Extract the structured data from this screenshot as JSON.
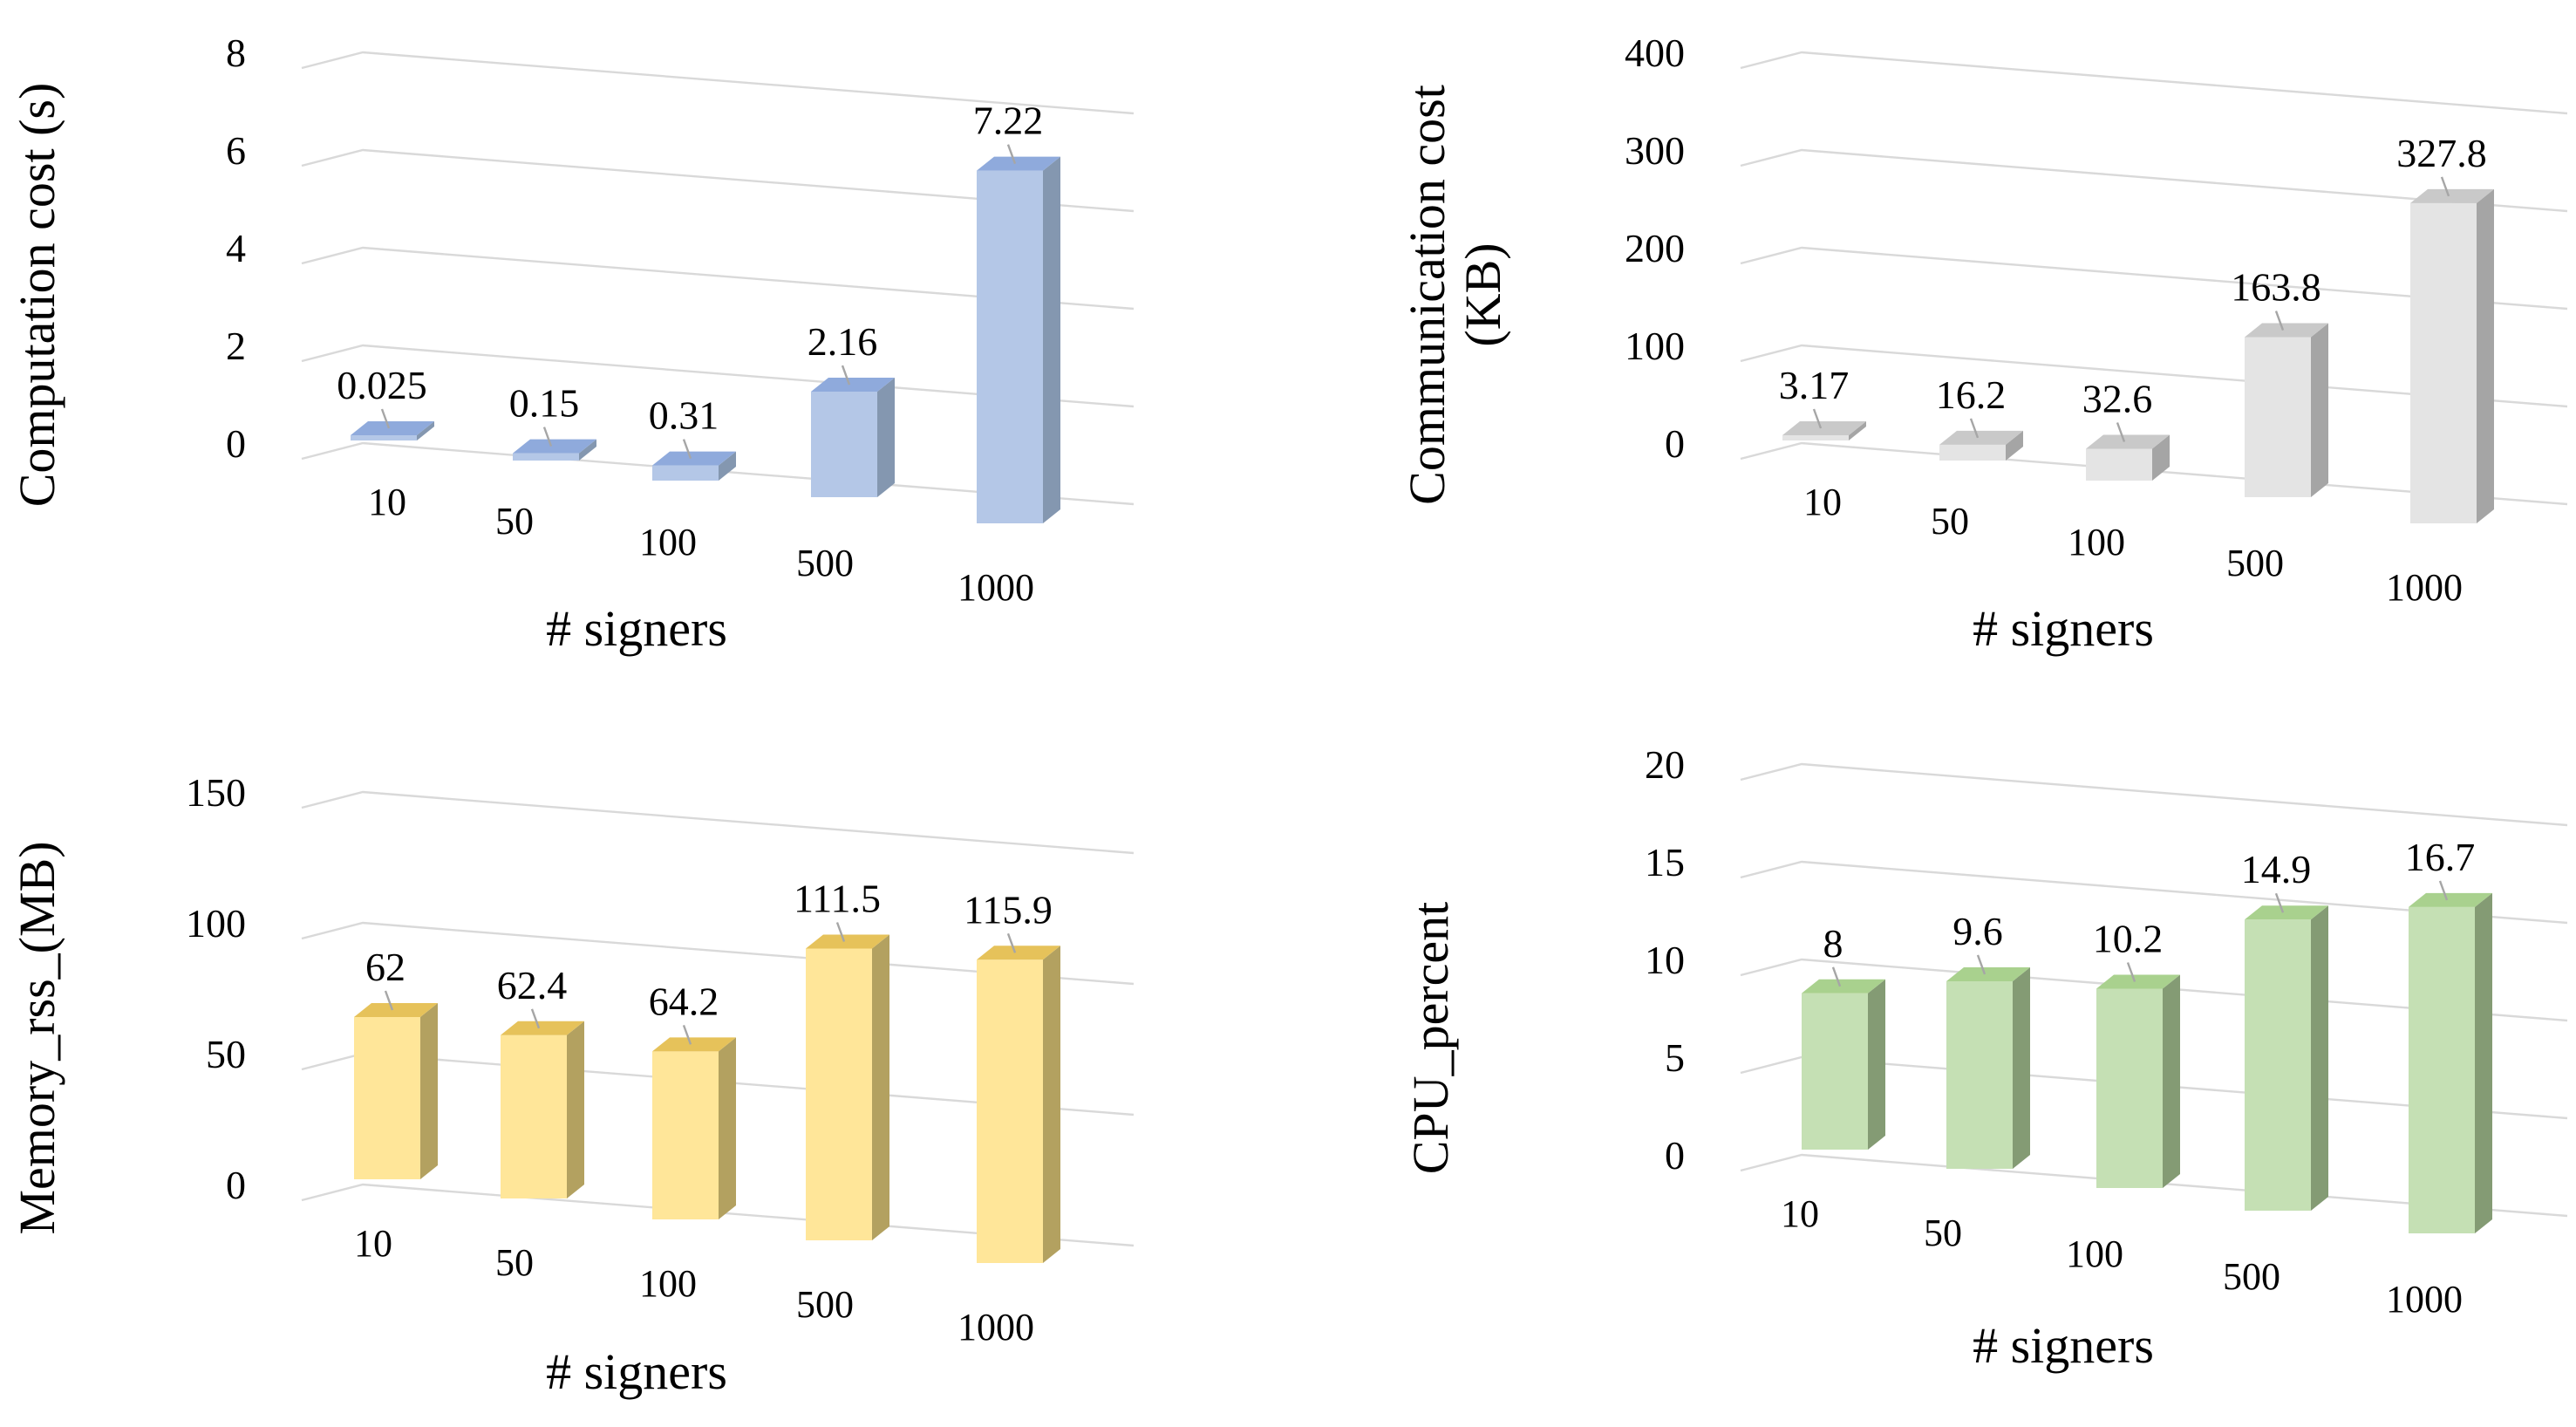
{
  "chart_data": [
    {
      "type": "bar",
      "style": "3d-column",
      "title": "",
      "xlabel": "# signers",
      "ylabel_lines": [
        "Computation cost (s)"
      ],
      "categories": [
        "10",
        "50",
        "100",
        "500",
        "1000"
      ],
      "values": [
        0.025,
        0.15,
        0.31,
        2.16,
        7.22
      ],
      "value_labels": [
        "0.025",
        "0.15",
        "0.31",
        "2.16",
        "7.22"
      ],
      "ylim": [
        0,
        8
      ],
      "yticks": [
        0,
        2,
        4,
        6,
        8
      ],
      "ytick_labels": [
        "0",
        "2",
        "4",
        "6",
        "8"
      ],
      "colors": {
        "front": "#b4c7e7",
        "side": "#8497b0",
        "top": "#8faadc"
      },
      "grid": true,
      "legend": "none"
    },
    {
      "type": "bar",
      "style": "3d-column",
      "title": "",
      "xlabel": "# signers",
      "ylabel_lines": [
        "Communication cost",
        "(KB)"
      ],
      "categories": [
        "10",
        "50",
        "100",
        "500",
        "1000"
      ],
      "values": [
        3.17,
        16.2,
        32.6,
        163.8,
        327.8
      ],
      "value_labels": [
        "3.17",
        "16.2",
        "32.6",
        "163.8",
        "327.8"
      ],
      "ylim": [
        0,
        400
      ],
      "yticks": [
        0,
        100,
        200,
        300,
        400
      ],
      "ytick_labels": [
        "0",
        "100",
        "200",
        "300",
        "400"
      ],
      "colors": {
        "front": "#e4e4e4",
        "side": "#a5a5a5",
        "top": "#c9c9c9"
      },
      "grid": true,
      "legend": "none"
    },
    {
      "type": "bar",
      "style": "3d-column",
      "title": "",
      "xlabel": "# signers",
      "ylabel_lines": [
        "Memory_rss_(MB)"
      ],
      "categories": [
        "10",
        "50",
        "100",
        "500",
        "1000"
      ],
      "values": [
        62,
        62.4,
        64.2,
        111.5,
        115.9
      ],
      "value_labels": [
        "62",
        "62.4",
        "64.2",
        "111.5",
        "115.9"
      ],
      "ylim": [
        0,
        150
      ],
      "yticks": [
        0,
        50,
        100,
        150
      ],
      "ytick_labels": [
        "0",
        "50",
        "100",
        "150"
      ],
      "colors": {
        "front": "#ffe699",
        "side": "#b3a160",
        "top": "#e6c25a"
      },
      "grid": true,
      "legend": "none"
    },
    {
      "type": "bar",
      "style": "3d-column",
      "title": "",
      "xlabel": "# signers",
      "ylabel_lines": [
        "CPU_percent"
      ],
      "categories": [
        "10",
        "50",
        "100",
        "500",
        "1000"
      ],
      "values": [
        8,
        9.6,
        10.2,
        14.9,
        16.7
      ],
      "value_labels": [
        "8",
        "9.6",
        "10.2",
        "14.9",
        "16.7"
      ],
      "ylim": [
        0,
        20
      ],
      "yticks": [
        0,
        5,
        10,
        15,
        20
      ],
      "ytick_labels": [
        "0",
        "5",
        "10",
        "15",
        "20"
      ],
      "colors": {
        "front": "#c5e0b4",
        "side": "#849b74",
        "top": "#a9d18e"
      },
      "grid": true,
      "legend": "none"
    }
  ]
}
